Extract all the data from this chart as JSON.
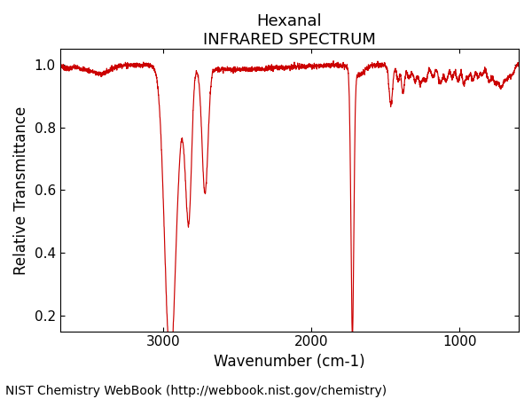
{
  "title1": "Hexanal",
  "title2": "INFRARED SPECTRUM",
  "xlabel": "Wavenumber (cm-1)",
  "ylabel": "Relative Transmittance",
  "xlim": [
    3700,
    600
  ],
  "ylim": [
    0.15,
    1.05
  ],
  "yticks": [
    0.2,
    0.4,
    0.6,
    0.8,
    1.0
  ],
  "xticks": [
    3000,
    2000,
    1000
  ],
  "line_color": "#cc0000",
  "background_color": "#ffffff",
  "footer": "NIST Chemistry WebBook (http://webbook.nist.gov/chemistry)",
  "title_fontsize": 13,
  "label_fontsize": 12,
  "tick_fontsize": 11,
  "footer_fontsize": 10
}
